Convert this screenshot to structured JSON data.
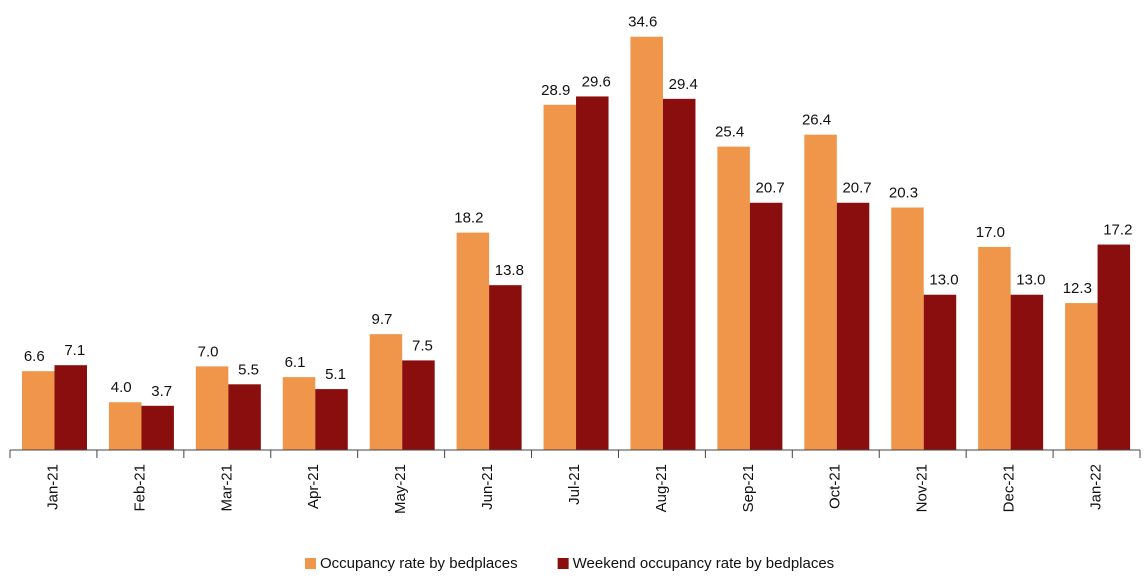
{
  "chart_data": {
    "type": "bar",
    "categories": [
      "Jan-21",
      "Feb-21",
      "Mar-21",
      "Apr-21",
      "May-21",
      "Jun-21",
      "Jul-21",
      "Aug-21",
      "Sep-21",
      "Oct-21",
      "Nov-21",
      "Dec-21",
      "Jan-22"
    ],
    "series": [
      {
        "name": "Occupancy rate by bedplaces",
        "color": "#f0964a",
        "values": [
          6.6,
          4.0,
          7.0,
          6.1,
          9.7,
          18.2,
          28.9,
          34.6,
          25.4,
          26.4,
          20.3,
          17.0,
          12.3
        ],
        "value_labels": [
          "6.6",
          "4.0",
          "7.0",
          "6.1",
          "9.7",
          "18.2",
          "28.9",
          "34.6",
          "25.4",
          "26.4",
          "20.3",
          "17.0",
          "12.3"
        ]
      },
      {
        "name": "Weekend occupancy rate by bedplaces",
        "color": "#8b0e0e",
        "values": [
          7.1,
          3.7,
          5.5,
          5.1,
          7.5,
          13.8,
          29.6,
          29.4,
          20.7,
          20.7,
          13.0,
          13.0,
          17.2
        ],
        "value_labels": [
          "7.1",
          "3.7",
          "5.5",
          "5.1",
          "7.5",
          "13.8",
          "29.6",
          "29.4",
          "20.7",
          "20.7",
          "13.0",
          "13.0",
          "17.2"
        ]
      }
    ],
    "ylim": [
      0,
      36
    ]
  }
}
